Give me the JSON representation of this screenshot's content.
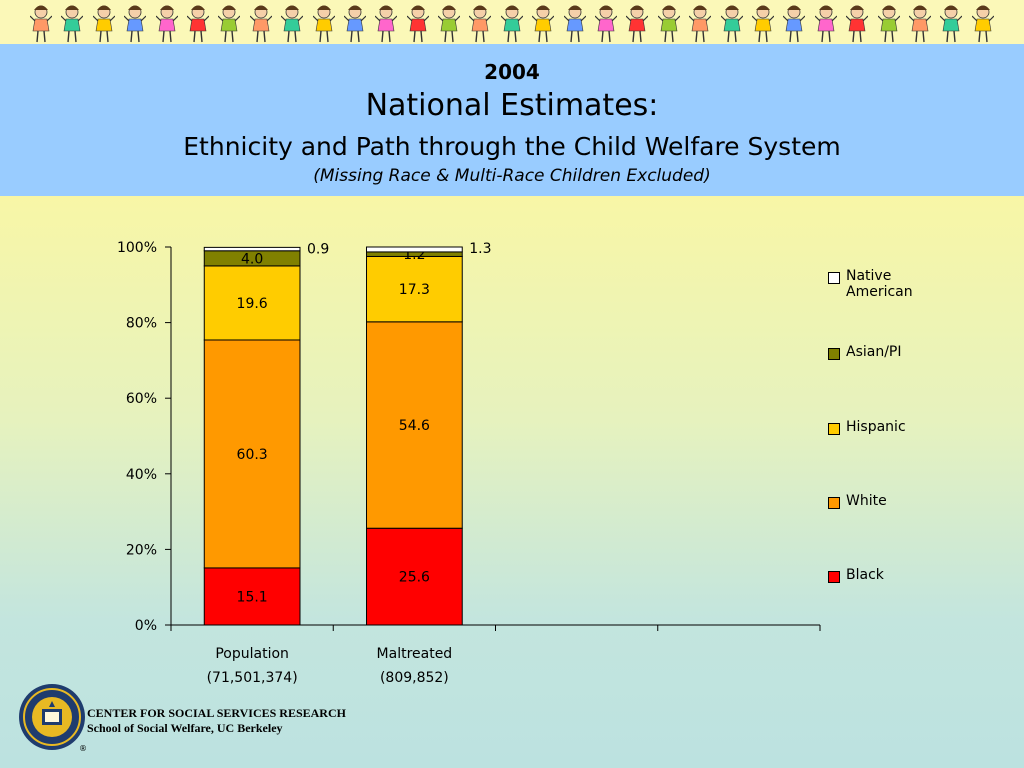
{
  "header": {
    "year": "2004",
    "title": "National Estimates:",
    "subtitle": "Ethnicity and Path through the Child Welfare System",
    "note": "(Missing Race & Multi-Race Children Excluded)"
  },
  "chart_data": {
    "type": "bar",
    "stacked": true,
    "percent_stacked": true,
    "categories": [
      {
        "line1": "Population",
        "line2": "(71,501,374)"
      },
      {
        "line1": "Maltreated",
        "line2": "(809,852)"
      }
    ],
    "series": [
      {
        "name": "Black",
        "color": "#ff0000",
        "values": [
          15.1,
          25.6
        ],
        "labels": [
          "15.1",
          "25.6"
        ]
      },
      {
        "name": "White",
        "color": "#ff9900",
        "values": [
          60.3,
          54.6
        ],
        "labels": [
          "60.3",
          "54.6"
        ]
      },
      {
        "name": "Hispanic",
        "color": "#ffcc00",
        "values": [
          19.6,
          17.3
        ],
        "labels": [
          "19.6",
          "17.3"
        ]
      },
      {
        "name": "Asian/PI",
        "color": "#808000",
        "values": [
          4.0,
          1.2
        ],
        "labels": [
          "4.0",
          "1.2"
        ]
      },
      {
        "name": "Native American",
        "color": "#ffffff",
        "values": [
          0.9,
          1.3
        ],
        "labels": [
          "0.9",
          "1.3"
        ]
      }
    ],
    "y_ticks": [
      "0%",
      "20%",
      "40%",
      "60%",
      "80%",
      "100%"
    ],
    "ylim": [
      0,
      100
    ],
    "empty_category_slots": 2,
    "grid": false,
    "legend_position": "right"
  },
  "legend": [
    {
      "label": "Native American",
      "color": "#ffffff"
    },
    {
      "label": "Asian/PI",
      "color": "#808000"
    },
    {
      "label": "Hispanic",
      "color": "#ffcc00"
    },
    {
      "label": "White",
      "color": "#ff9900"
    },
    {
      "label": "Black",
      "color": "#ff0000"
    }
  ],
  "footer": {
    "line1": "CENTER FOR SOCIAL SERVICES RESEARCH",
    "line2": "School of Social Welfare, UC Berkeley",
    "logo_icon": "uc-seal-icon",
    "registered_mark": "®"
  },
  "banner": {
    "icon": "children-holding-hands-icon",
    "shirt_colors": [
      "#ff9966",
      "#33cc99",
      "#ffcc00",
      "#6699ff",
      "#ff66cc",
      "#ff3333",
      "#99cc33"
    ]
  }
}
